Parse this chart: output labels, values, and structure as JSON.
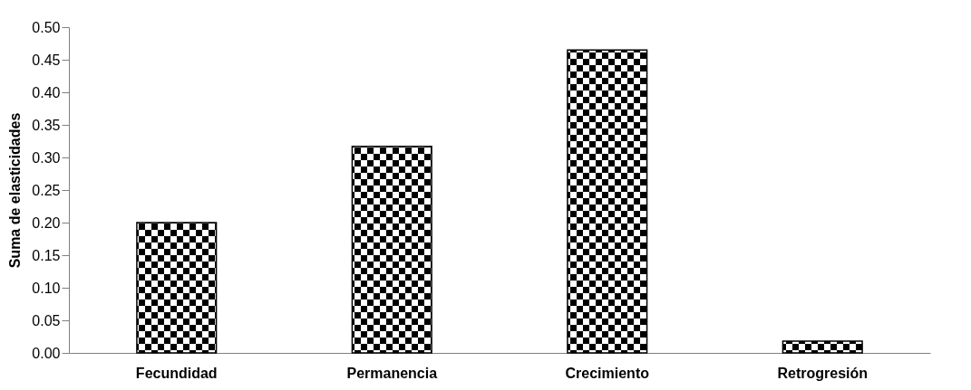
{
  "chart_data": {
    "type": "bar",
    "ylabel": "Suma de elasticidades",
    "categories": [
      "Fecundidad",
      "Permanencia",
      "Crecimiento",
      "Retrogresión"
    ],
    "values": [
      0.2,
      0.317,
      0.465,
      0.018
    ],
    "color": "#000000",
    "ylim": [
      0,
      0.5
    ],
    "yticks": [
      {
        "value": 0,
        "label": "0.00"
      },
      {
        "value": 0.05,
        "label": "0.05"
      },
      {
        "value": 0.1,
        "label": "0.10"
      },
      {
        "value": 0.15,
        "label": "0.15"
      },
      {
        "value": 0.2,
        "label": "0.20"
      },
      {
        "value": 0.25,
        "label": "0.25"
      },
      {
        "value": 0.3,
        "label": "0.30"
      },
      {
        "value": 0.35,
        "label": "0.35"
      },
      {
        "value": 0.4,
        "label": "0.40"
      },
      {
        "value": 0.45,
        "label": "0.45"
      },
      {
        "value": 0.5,
        "label": "0.50"
      }
    ],
    "grid": false
  }
}
